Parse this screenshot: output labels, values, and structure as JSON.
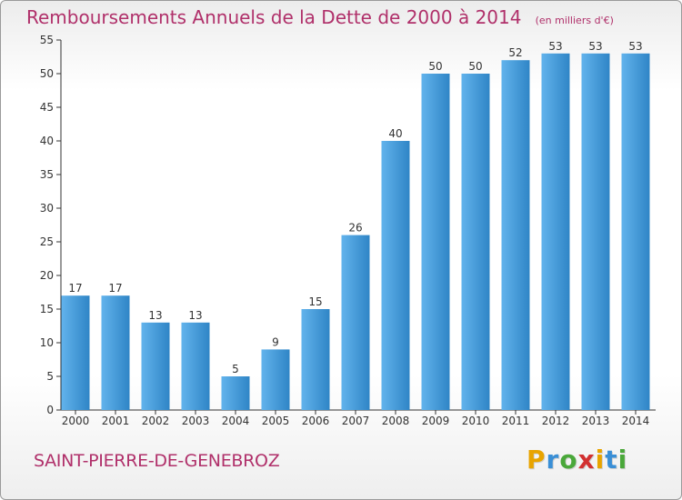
{
  "chart_data": {
    "type": "bar",
    "title": "Remboursements Annuels de la Dette de 2000 à 2014",
    "unit_label": "(en milliers d'€)",
    "categories": [
      "2000",
      "2001",
      "2002",
      "2003",
      "2004",
      "2005",
      "2006",
      "2007",
      "2008",
      "2009",
      "2010",
      "2011",
      "2012",
      "2013",
      "2014"
    ],
    "values": [
      17,
      17,
      13,
      13,
      5,
      9,
      15,
      26,
      40,
      50,
      50,
      52,
      53,
      53,
      53
    ],
    "ylim": [
      0,
      55
    ],
    "yticks": [
      0,
      5,
      10,
      15,
      20,
      25,
      30,
      35,
      40,
      45,
      50,
      55
    ],
    "xlabel": "",
    "ylabel": "",
    "grid": false
  },
  "footer": {
    "commune": "SAINT-PIERRE-DE-GENEBROZ",
    "logo_letters": [
      "P",
      "r",
      "o",
      "x",
      "i",
      "t",
      "i"
    ],
    "logo_colors": [
      "#e8a400",
      "#3a8fd6",
      "#4aa83a",
      "#d23030",
      "#e8a400",
      "#3a8fd6",
      "#4aa83a"
    ]
  },
  "colors": {
    "bar_light": "#62b3ec",
    "bar_dark": "#2f85c6",
    "axis": "#333333",
    "text": "#333333"
  }
}
